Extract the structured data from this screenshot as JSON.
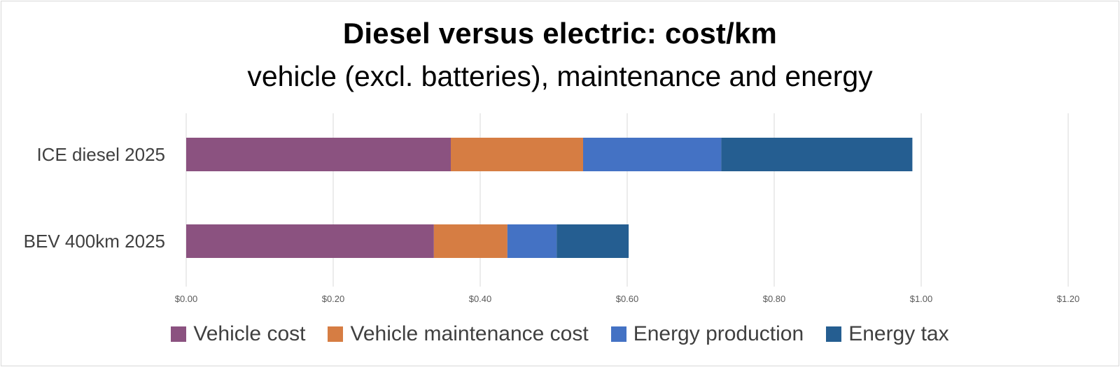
{
  "chart_data": {
    "type": "bar",
    "orientation": "horizontal",
    "stacked": true,
    "title": "Diesel versus electric: cost/km",
    "subtitle": "vehicle (excl. batteries), maintenance and energy",
    "categories": [
      "ICE diesel 2025",
      "BEV 400km 2025"
    ],
    "series": [
      {
        "name": "Vehicle cost",
        "color": "#8B5280",
        "values": [
          0.36,
          0.337
        ]
      },
      {
        "name": "Vehicle maintenance cost",
        "color": "#D67D43",
        "values": [
          0.18,
          0.1
        ]
      },
      {
        "name": "Energy production",
        "color": "#4472C4",
        "values": [
          0.188,
          0.067
        ]
      },
      {
        "name": "Energy tax",
        "color": "#255E91",
        "values": [
          0.26,
          0.098
        ]
      }
    ],
    "x_ticks": [
      "$0.00",
      "$0.20",
      "$0.40",
      "$0.60",
      "$0.80",
      "$1.00",
      "$1.20"
    ],
    "xlim": [
      0,
      1.2
    ],
    "grid": true,
    "legend_position": "bottom"
  }
}
